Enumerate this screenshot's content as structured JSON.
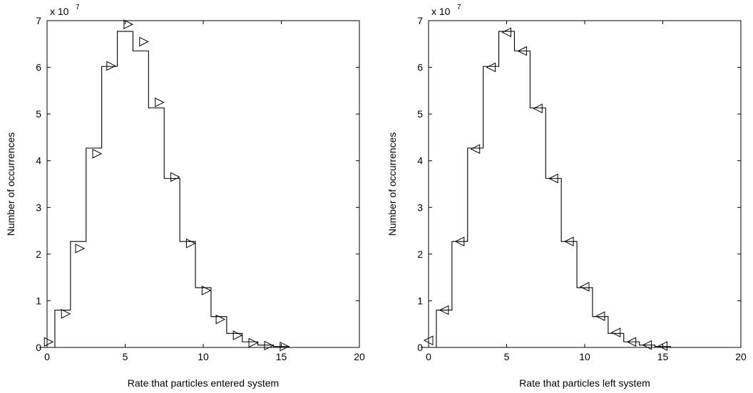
{
  "chart_data": [
    {
      "type": "line",
      "style": "stairs-histogram",
      "marker": "triangle-right",
      "xlabel": "Rate that particles entered system",
      "ylabel": "Number of occurrences",
      "y_exponent": {
        "base": "x 10",
        "power": "7"
      },
      "xlim": [
        0,
        20
      ],
      "ylim": [
        0,
        7
      ],
      "xticks": [
        "0",
        "5",
        "10",
        "15",
        "20"
      ],
      "yticks": [
        "0",
        "1",
        "2",
        "3",
        "4",
        "5",
        "6",
        "7"
      ],
      "bars": [
        {
          "x": 0,
          "y": 0.0
        },
        {
          "x": 1,
          "y": 0.8
        },
        {
          "x": 2,
          "y": 2.27
        },
        {
          "x": 3,
          "y": 4.27
        },
        {
          "x": 4,
          "y": 6.02
        },
        {
          "x": 5,
          "y": 6.77
        },
        {
          "x": 6,
          "y": 6.35
        },
        {
          "x": 7,
          "y": 5.13
        },
        {
          "x": 8,
          "y": 3.62
        },
        {
          "x": 9,
          "y": 2.27
        },
        {
          "x": 10,
          "y": 1.28
        },
        {
          "x": 11,
          "y": 0.66
        },
        {
          "x": 12,
          "y": 0.3
        },
        {
          "x": 13,
          "y": 0.12
        },
        {
          "x": 14,
          "y": 0.05
        },
        {
          "x": 15,
          "y": 0.02
        }
      ],
      "markers": [
        {
          "x": 0.1,
          "y": 0.12
        },
        {
          "x": 1.2,
          "y": 0.72
        },
        {
          "x": 2.1,
          "y": 2.12
        },
        {
          "x": 3.2,
          "y": 4.15
        },
        {
          "x": 4.1,
          "y": 6.03
        },
        {
          "x": 5.2,
          "y": 6.92
        },
        {
          "x": 6.2,
          "y": 6.55
        },
        {
          "x": 7.2,
          "y": 5.25
        },
        {
          "x": 8.2,
          "y": 3.65
        },
        {
          "x": 9.2,
          "y": 2.23
        },
        {
          "x": 10.2,
          "y": 1.22
        },
        {
          "x": 11.1,
          "y": 0.6
        },
        {
          "x": 12.2,
          "y": 0.26
        },
        {
          "x": 13.2,
          "y": 0.1
        },
        {
          "x": 14.2,
          "y": 0.04
        },
        {
          "x": 15.2,
          "y": 0.02
        }
      ]
    },
    {
      "type": "line",
      "style": "stairs-histogram",
      "marker": "triangle-left",
      "xlabel": "Rate that particles left system",
      "ylabel": "Number of occurrences",
      "y_exponent": {
        "base": "x 10",
        "power": "7"
      },
      "xlim": [
        0,
        20
      ],
      "ylim": [
        0,
        7
      ],
      "xticks": [
        "0",
        "5",
        "10",
        "15",
        "20"
      ],
      "yticks": [
        "0",
        "1",
        "2",
        "3",
        "4",
        "5",
        "6",
        "7"
      ],
      "bars": [
        {
          "x": 0,
          "y": 0.0
        },
        {
          "x": 1,
          "y": 0.8
        },
        {
          "x": 2,
          "y": 2.27
        },
        {
          "x": 3,
          "y": 4.27
        },
        {
          "x": 4,
          "y": 6.02
        },
        {
          "x": 5,
          "y": 6.77
        },
        {
          "x": 6,
          "y": 6.35
        },
        {
          "x": 7,
          "y": 5.13
        },
        {
          "x": 8,
          "y": 3.62
        },
        {
          "x": 9,
          "y": 2.27
        },
        {
          "x": 10,
          "y": 1.28
        },
        {
          "x": 11,
          "y": 0.66
        },
        {
          "x": 12,
          "y": 0.3
        },
        {
          "x": 13,
          "y": 0.12
        },
        {
          "x": 14,
          "y": 0.05
        },
        {
          "x": 15,
          "y": 0.02
        }
      ],
      "markers": [
        {
          "x": 0.0,
          "y": 0.15
        },
        {
          "x": 1.0,
          "y": 0.8
        },
        {
          "x": 2.0,
          "y": 2.27
        },
        {
          "x": 3.0,
          "y": 4.25
        },
        {
          "x": 4.0,
          "y": 6.0
        },
        {
          "x": 5.0,
          "y": 6.75
        },
        {
          "x": 6.0,
          "y": 6.35
        },
        {
          "x": 7.0,
          "y": 5.12
        },
        {
          "x": 8.0,
          "y": 3.62
        },
        {
          "x": 9.0,
          "y": 2.27
        },
        {
          "x": 10.0,
          "y": 1.3
        },
        {
          "x": 11.0,
          "y": 0.67
        },
        {
          "x": 12.0,
          "y": 0.32
        },
        {
          "x": 13.0,
          "y": 0.12
        },
        {
          "x": 14.0,
          "y": 0.05
        },
        {
          "x": 15.0,
          "y": 0.03
        }
      ]
    }
  ]
}
